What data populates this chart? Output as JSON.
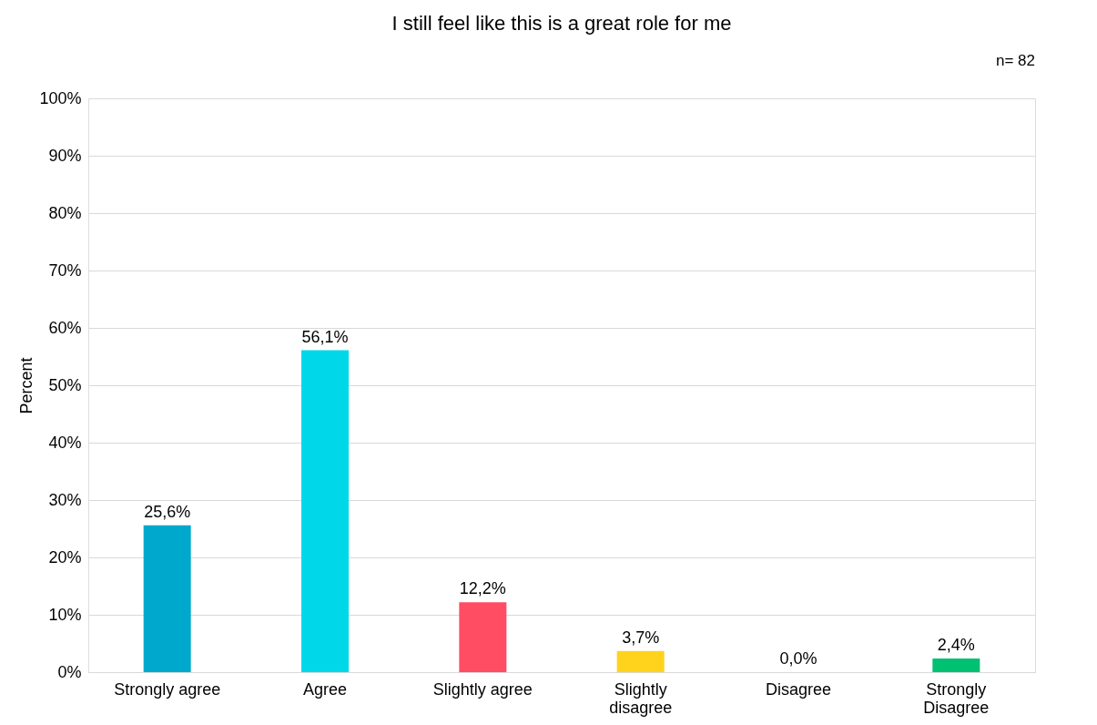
{
  "chart_data": {
    "type": "bar",
    "title": "I still feel like this is a great role for me",
    "ylabel": "Percent",
    "annotations": [
      "n= 82"
    ],
    "categories": [
      "Strongly agree",
      "Agree",
      "Slightly agree",
      "Slightly disagree",
      "Disagree",
      "Strongly Disagree"
    ],
    "values": [
      25.6,
      56.1,
      12.2,
      3.7,
      0.0,
      2.4
    ],
    "colors": [
      "#00a8cc",
      "#00d8ea",
      "#ff4d63",
      "#ffd21c",
      "#00c86f",
      "#00c072"
    ],
    "value_labels": [
      "25,6%",
      "56,1%",
      "12,2%",
      "3,7%",
      "0,0%",
      "2,4%"
    ],
    "ylim": [
      0,
      100
    ],
    "yticks": [
      {
        "value": 0,
        "label": "0%"
      },
      {
        "value": 10,
        "label": "10%"
      },
      {
        "value": 20,
        "label": "20%"
      },
      {
        "value": 30,
        "label": "30%"
      },
      {
        "value": 40,
        "label": "40%"
      },
      {
        "value": 50,
        "label": "50%"
      },
      {
        "value": 60,
        "label": "60%"
      },
      {
        "value": 70,
        "label": "70%"
      },
      {
        "value": 80,
        "label": "80%"
      },
      {
        "value": 90,
        "label": "90%"
      },
      {
        "value": 100,
        "label": "100%"
      }
    ],
    "grid": "y"
  }
}
